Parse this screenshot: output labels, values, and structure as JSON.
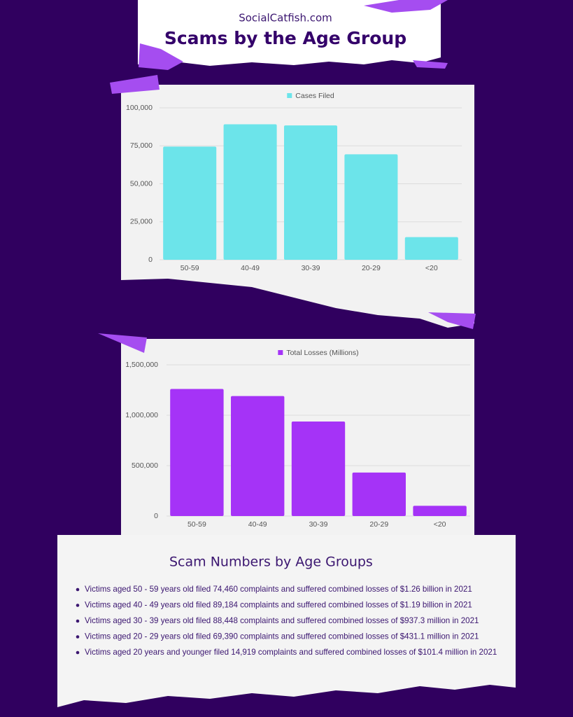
{
  "header": {
    "site": "SocialCatfish.com",
    "title": "Scams by the Age Group"
  },
  "chart_data": [
    {
      "type": "bar",
      "categories": [
        "50-59",
        "40-49",
        "30-39",
        "20-29",
        "<20"
      ],
      "series": [
        {
          "name": "Cases Filed",
          "color": "#6ce4ea",
          "values": [
            74460,
            89184,
            88448,
            69390,
            14919
          ]
        }
      ],
      "ylim": [
        0,
        100000
      ],
      "yticks": [
        0,
        {
          "value": 25000,
          "label": "25,000"
        },
        {
          "value": 50000,
          "label": "50,000"
        },
        {
          "value": 75000,
          "label": "75,000"
        },
        {
          "value": 100000,
          "label": "100,000"
        }
      ],
      "grid": true,
      "legend": "top"
    },
    {
      "type": "bar",
      "categories": [
        "50-59",
        "40-49",
        "30-39",
        "20-29",
        "<20"
      ],
      "series": [
        {
          "name": "Total Losses (Millions)",
          "color": "#a533f7",
          "values": [
            1260000,
            1190000,
            937300,
            431100,
            101400
          ]
        }
      ],
      "ylim": [
        0,
        1500000
      ],
      "yticks": [
        0,
        {
          "value": 500000,
          "label": "500,000"
        },
        {
          "value": 1000000,
          "label": "1,000,000"
        },
        {
          "value": 1500000,
          "label": "1,500,000"
        }
      ],
      "grid": true,
      "legend": "top"
    }
  ],
  "summary": {
    "title": "Scam Numbers by Age Groups",
    "items": [
      "Victims aged 50 - 59 years old filed 74,460 complaints and suffered combined losses of $1.26 billion in 2021",
      "Victims aged 40 - 49 years old filed 89,184 complaints and suffered combined losses of $1.19 billion in 2021",
      "Victims aged 30 - 39 years old filed 88,448 complaints and suffered combined losses of $937.3 million in 2021",
      "Victims aged 20 - 29 years old filed 69,390 complaints and suffered combined losses of $431.1 million in 2021",
      "Victims aged 20 years and younger filed 14,919 complaints and suffered combined losses of $101.4 million in 2021"
    ]
  }
}
